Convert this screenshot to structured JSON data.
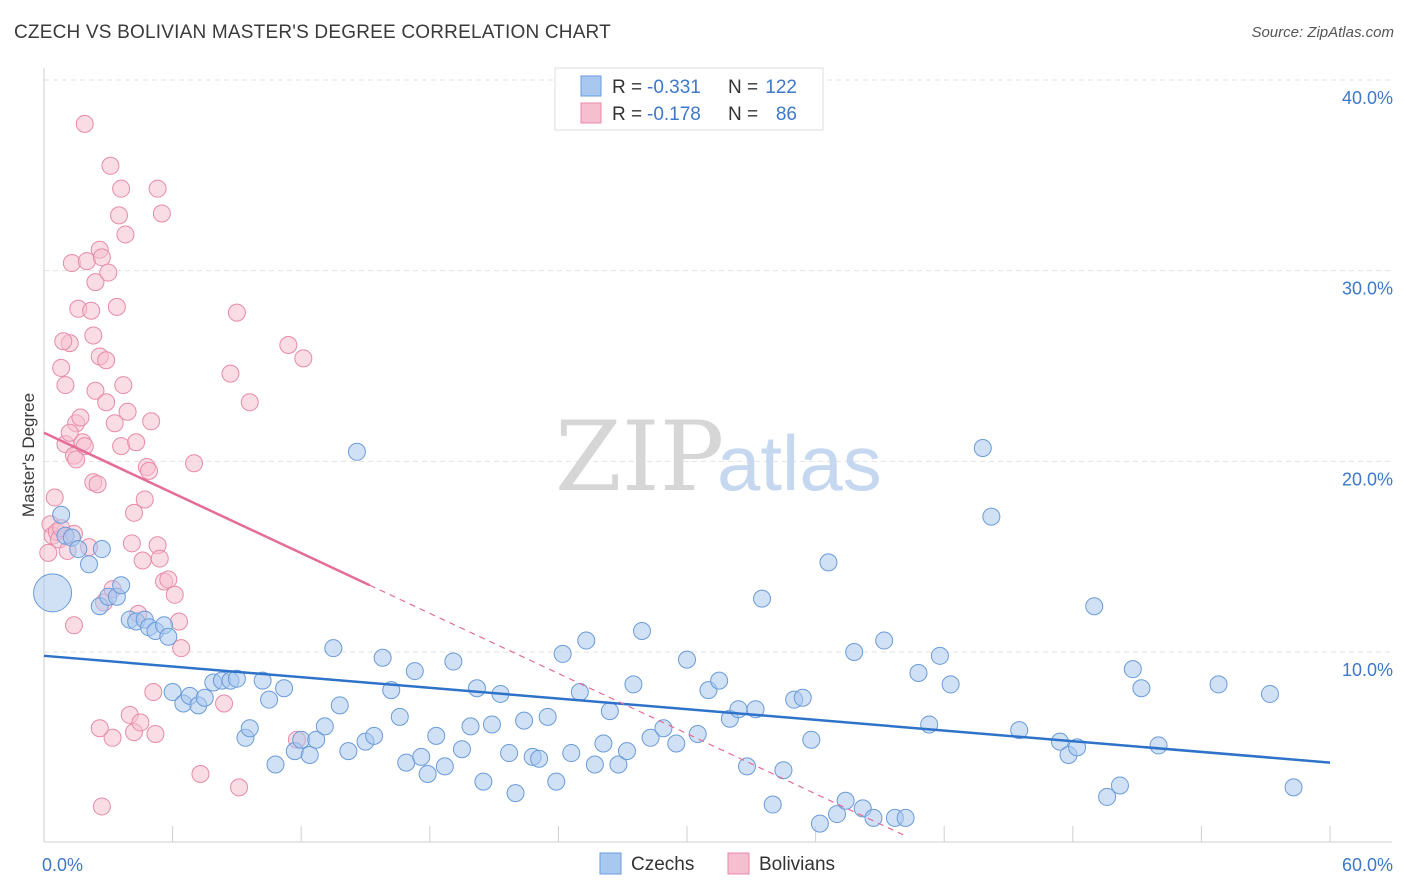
{
  "header": {
    "title": "CZECH VS BOLIVIAN MASTER'S DEGREE CORRELATION CHART",
    "source": "Source: ZipAtlas.com"
  },
  "watermark": {
    "zip": "ZIP",
    "atlas": "atlas"
  },
  "colors": {
    "czech_fill": "#a9c8ef",
    "czech_stroke": "#6a9bd8",
    "czech_line": "#2f72c9",
    "bolivian_fill": "#f6bfd0",
    "bolivian_stroke": "#e88aa8",
    "bolivian_line": "#e46c96",
    "grid": "#e2e2e2",
    "axis_text": "#3e78c8"
  },
  "legend": {
    "rows": [
      {
        "r_label": "R =",
        "r_value": "-0.331",
        "n_label": "N =",
        "n_value": "122"
      },
      {
        "r_label": "R =",
        "r_value": "-0.178",
        "n_label": "N =",
        "n_value": "86"
      }
    ]
  },
  "chart_data": {
    "type": "scatter",
    "title": "CZECH VS BOLIVIAN MASTER'S DEGREE CORRELATION CHART",
    "xlabel": "",
    "ylabel": "Master's Degree",
    "xlim": [
      0,
      60
    ],
    "ylim": [
      0,
      42
    ],
    "x_tick_labels": [
      "0.0%",
      "60.0%"
    ],
    "y_ticks": [
      10,
      20,
      30,
      40
    ],
    "y_tick_labels": [
      "10.0%",
      "20.0%",
      "30.0%",
      "40.0%"
    ],
    "grid": true,
    "legend_position": "top-center",
    "series": [
      {
        "name": "Czechs",
        "r": -0.331,
        "n": 122,
        "trend": {
          "x0": 0,
          "y0": 9.8,
          "x1": 60,
          "y1": 4.2
        },
        "points": [
          [
            0.4,
            13.1
          ],
          [
            0.8,
            17.2
          ],
          [
            1.0,
            16.1
          ],
          [
            1.3,
            16.0
          ],
          [
            1.6,
            15.4
          ],
          [
            2.1,
            14.6
          ],
          [
            2.6,
            12.4
          ],
          [
            2.7,
            15.4
          ],
          [
            3.0,
            12.9
          ],
          [
            3.4,
            12.9
          ],
          [
            3.6,
            13.5
          ],
          [
            4.0,
            11.7
          ],
          [
            4.3,
            11.6
          ],
          [
            4.7,
            11.7
          ],
          [
            4.9,
            11.3
          ],
          [
            5.2,
            11.1
          ],
          [
            5.6,
            11.4
          ],
          [
            5.8,
            10.8
          ],
          [
            6.0,
            7.9
          ],
          [
            6.5,
            7.3
          ],
          [
            6.8,
            7.7
          ],
          [
            7.2,
            7.2
          ],
          [
            7.5,
            7.6
          ],
          [
            7.9,
            8.4
          ],
          [
            8.3,
            8.5
          ],
          [
            8.7,
            8.5
          ],
          [
            9.0,
            8.6
          ],
          [
            9.4,
            5.5
          ],
          [
            9.6,
            6.0
          ],
          [
            10.2,
            8.5
          ],
          [
            10.5,
            7.5
          ],
          [
            10.8,
            4.1
          ],
          [
            11.2,
            8.1
          ],
          [
            11.7,
            4.8
          ],
          [
            12.0,
            5.4
          ],
          [
            12.4,
            4.6
          ],
          [
            12.7,
            5.4
          ],
          [
            13.1,
            6.1
          ],
          [
            13.5,
            10.2
          ],
          [
            13.8,
            7.2
          ],
          [
            14.2,
            4.8
          ],
          [
            14.6,
            20.5
          ],
          [
            15.0,
            5.3
          ],
          [
            15.4,
            5.6
          ],
          [
            15.8,
            9.7
          ],
          [
            16.2,
            8.0
          ],
          [
            16.6,
            6.6
          ],
          [
            16.9,
            4.2
          ],
          [
            17.3,
            9.0
          ],
          [
            17.6,
            4.5
          ],
          [
            17.9,
            3.6
          ],
          [
            18.3,
            5.6
          ],
          [
            18.7,
            4.0
          ],
          [
            19.1,
            9.5
          ],
          [
            19.5,
            4.9
          ],
          [
            19.9,
            6.1
          ],
          [
            20.2,
            8.1
          ],
          [
            20.5,
            3.2
          ],
          [
            20.9,
            6.2
          ],
          [
            21.3,
            7.8
          ],
          [
            21.7,
            4.7
          ],
          [
            22.0,
            2.6
          ],
          [
            22.4,
            6.4
          ],
          [
            22.8,
            4.5
          ],
          [
            23.1,
            4.4
          ],
          [
            23.5,
            6.6
          ],
          [
            23.9,
            3.2
          ],
          [
            24.2,
            9.9
          ],
          [
            24.6,
            4.7
          ],
          [
            25.0,
            7.9
          ],
          [
            25.3,
            10.6
          ],
          [
            25.7,
            4.1
          ],
          [
            26.1,
            5.2
          ],
          [
            26.4,
            6.9
          ],
          [
            26.8,
            4.1
          ],
          [
            27.2,
            4.8
          ],
          [
            27.5,
            8.3
          ],
          [
            27.9,
            11.1
          ],
          [
            28.3,
            5.5
          ],
          [
            28.9,
            6.0
          ],
          [
            29.5,
            5.2
          ],
          [
            30.0,
            9.6
          ],
          [
            30.5,
            5.7
          ],
          [
            31.0,
            8.0
          ],
          [
            31.5,
            8.5
          ],
          [
            32.0,
            6.5
          ],
          [
            32.4,
            7.0
          ],
          [
            32.8,
            4.0
          ],
          [
            33.2,
            7.0
          ],
          [
            33.5,
            12.8
          ],
          [
            34.0,
            2.0
          ],
          [
            34.5,
            3.8
          ],
          [
            35.0,
            7.5
          ],
          [
            35.4,
            7.6
          ],
          [
            35.8,
            5.4
          ],
          [
            36.2,
            1.0
          ],
          [
            36.6,
            14.7
          ],
          [
            37.0,
            1.5
          ],
          [
            37.4,
            2.2
          ],
          [
            37.8,
            10.0
          ],
          [
            38.2,
            1.8
          ],
          [
            38.7,
            1.3
          ],
          [
            39.2,
            10.6
          ],
          [
            39.7,
            1.3
          ],
          [
            40.2,
            1.3
          ],
          [
            40.8,
            8.9
          ],
          [
            41.3,
            6.2
          ],
          [
            41.8,
            9.8
          ],
          [
            42.3,
            8.3
          ],
          [
            43.8,
            20.7
          ],
          [
            44.2,
            17.1
          ],
          [
            45.5,
            5.9
          ],
          [
            47.4,
            5.3
          ],
          [
            47.8,
            4.6
          ],
          [
            48.2,
            5.0
          ],
          [
            49.0,
            12.4
          ],
          [
            49.6,
            2.4
          ],
          [
            50.2,
            3.0
          ],
          [
            50.8,
            9.1
          ],
          [
            51.2,
            8.1
          ],
          [
            52.0,
            5.1
          ],
          [
            54.8,
            8.3
          ],
          [
            57.2,
            7.8
          ],
          [
            58.3,
            2.9
          ]
        ]
      },
      {
        "name": "Bolivians",
        "r": -0.178,
        "n": 86,
        "trend": {
          "x0": 0,
          "y0": 21.5,
          "x1": 15.2,
          "y1": 13.5,
          "dash_x1": 40.3,
          "dash_y1": 0.3
        },
        "points": [
          [
            0.2,
            15.2
          ],
          [
            0.3,
            16.7
          ],
          [
            0.4,
            16.1
          ],
          [
            0.5,
            18.1
          ],
          [
            0.6,
            16.3
          ],
          [
            0.7,
            15.9
          ],
          [
            0.8,
            16.5
          ],
          [
            0.8,
            24.9
          ],
          [
            1.0,
            24.0
          ],
          [
            1.0,
            20.9
          ],
          [
            1.1,
            15.3
          ],
          [
            1.2,
            26.2
          ],
          [
            1.3,
            30.4
          ],
          [
            1.4,
            20.3
          ],
          [
            1.4,
            16.2
          ],
          [
            1.5,
            22.0
          ],
          [
            1.6,
            28.0
          ],
          [
            1.7,
            22.3
          ],
          [
            1.8,
            21.0
          ],
          [
            1.9,
            20.8
          ],
          [
            1.5,
            20.1
          ],
          [
            1.2,
            21.5
          ],
          [
            1.4,
            11.4
          ],
          [
            1.9,
            37.7
          ],
          [
            2.0,
            30.5
          ],
          [
            2.1,
            15.5
          ],
          [
            2.2,
            27.9
          ],
          [
            2.3,
            26.6
          ],
          [
            2.3,
            18.9
          ],
          [
            2.4,
            29.4
          ],
          [
            2.4,
            23.7
          ],
          [
            2.5,
            18.8
          ],
          [
            2.6,
            25.5
          ],
          [
            2.6,
            31.1
          ],
          [
            2.7,
            30.7
          ],
          [
            2.8,
            12.6
          ],
          [
            2.9,
            23.1
          ],
          [
            2.9,
            25.3
          ],
          [
            3.0,
            29.9
          ],
          [
            3.1,
            35.5
          ],
          [
            3.2,
            13.3
          ],
          [
            3.2,
            5.5
          ],
          [
            3.3,
            22.0
          ],
          [
            3.4,
            28.1
          ],
          [
            3.5,
            32.9
          ],
          [
            3.6,
            34.3
          ],
          [
            3.6,
            20.8
          ],
          [
            3.7,
            24.0
          ],
          [
            3.8,
            31.9
          ],
          [
            3.9,
            22.6
          ],
          [
            4.0,
            6.7
          ],
          [
            4.1,
            15.7
          ],
          [
            4.2,
            17.3
          ],
          [
            4.2,
            5.8
          ],
          [
            4.3,
            21.0
          ],
          [
            4.4,
            12.0
          ],
          [
            4.5,
            6.3
          ],
          [
            4.6,
            14.8
          ],
          [
            4.7,
            18.0
          ],
          [
            4.8,
            19.7
          ],
          [
            4.9,
            19.5
          ],
          [
            5.0,
            22.1
          ],
          [
            5.1,
            7.9
          ],
          [
            5.2,
            5.7
          ],
          [
            5.3,
            15.6
          ],
          [
            5.4,
            14.9
          ],
          [
            5.5,
            33.0
          ],
          [
            5.6,
            13.7
          ],
          [
            5.8,
            13.8
          ],
          [
            6.1,
            13.0
          ],
          [
            6.3,
            11.6
          ],
          [
            6.4,
            10.2
          ],
          [
            7.0,
            19.9
          ],
          [
            7.3,
            3.6
          ],
          [
            8.4,
            7.3
          ],
          [
            8.7,
            24.6
          ],
          [
            9.0,
            27.8
          ],
          [
            9.1,
            2.9
          ],
          [
            9.6,
            23.1
          ],
          [
            11.4,
            26.1
          ],
          [
            11.8,
            5.4
          ],
          [
            12.1,
            25.4
          ],
          [
            2.6,
            6.0
          ],
          [
            5.3,
            34.3
          ],
          [
            2.7,
            1.9
          ],
          [
            0.9,
            26.3
          ]
        ]
      }
    ]
  },
  "bottom_legend": {
    "czechs": "Czechs",
    "bolivians": "Bolivians"
  }
}
